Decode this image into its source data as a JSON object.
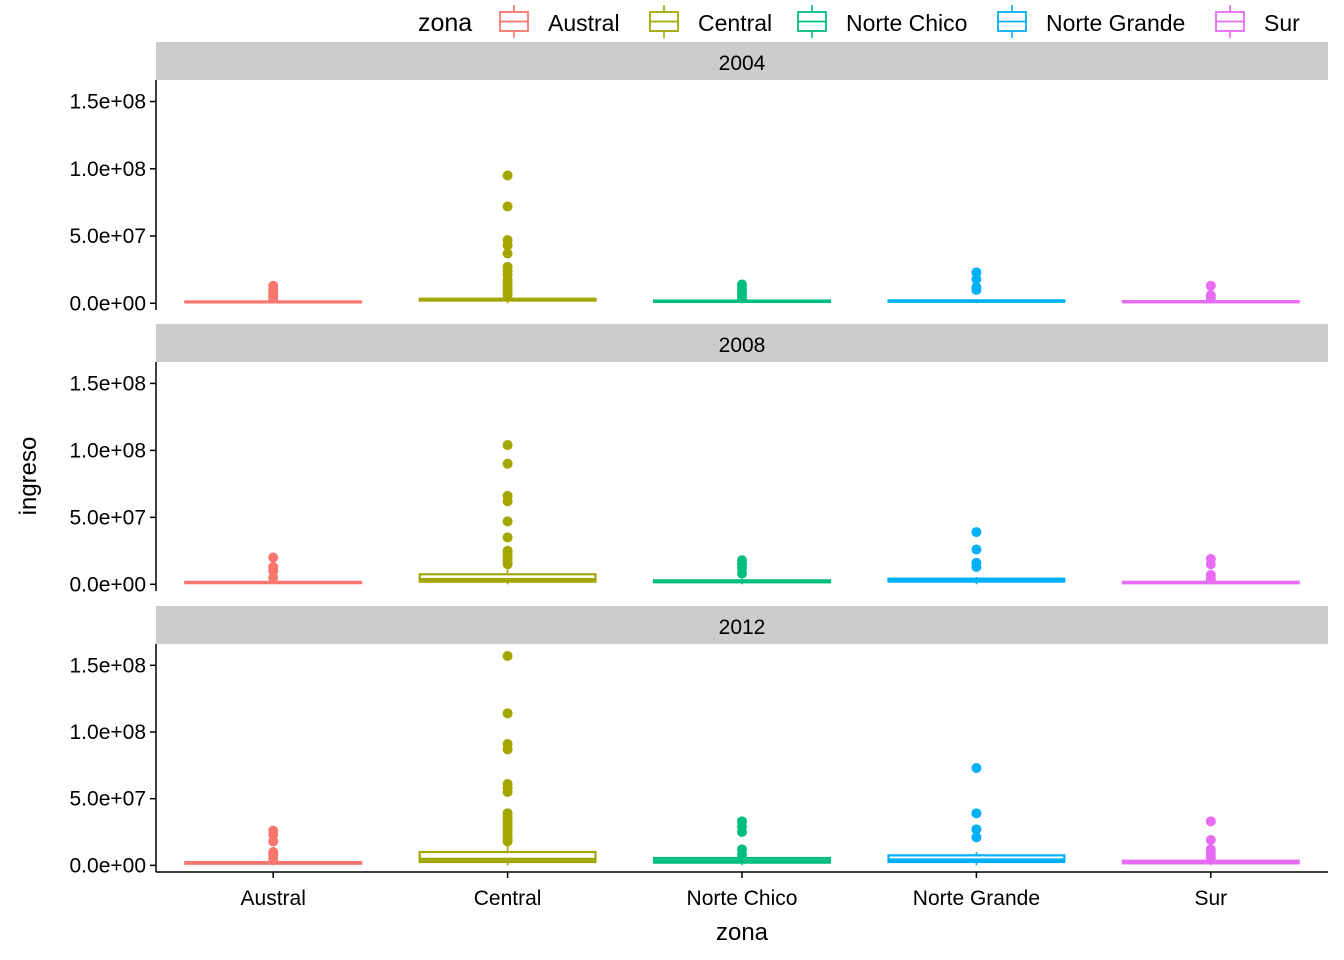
{
  "chart_data": {
    "type": "boxplot",
    "facet_by": "year",
    "facets": [
      "2004",
      "2008",
      "2012"
    ],
    "xlabel": "zona",
    "ylabel": "ingreso",
    "categories": [
      "Austral",
      "Central",
      "Norte Chico",
      "Norte Grande",
      "Sur"
    ],
    "ylim": [
      0,
      160000000
    ],
    "yticks": [
      0,
      50000000,
      100000000,
      150000000
    ],
    "ytick_labels": [
      "0.0e+00",
      "5.0e+07",
      "1.0e+08",
      "1.5e+08"
    ],
    "legend": {
      "title": "zona",
      "position": "top",
      "entries": [
        "Austral",
        "Central",
        "Norte Chico",
        "Norte Grande",
        "Sur"
      ]
    },
    "colors": {
      "Austral": "#F8766D",
      "Central": "#A3A500",
      "Norte Chico": "#00BF7D",
      "Norte Grande": "#00B0F6",
      "Sur": "#E76BF3"
    },
    "grid": false,
    "strip_color": "#CCCCCC",
    "panels": [
      {
        "facet": "2004",
        "boxes": [
          {
            "zona": "Austral",
            "lower": 0,
            "q1": 700000,
            "median": 1000000,
            "q3": 1300000,
            "upper": 2000000,
            "outliers": [
              13000000,
              11000000,
              9000000,
              7000000,
              5000000,
              3500000
            ]
          },
          {
            "zona": "Central",
            "lower": 0,
            "q1": 2000000,
            "median": 2700000,
            "q3": 3400000,
            "upper": 5000000,
            "outliers": [
              95000000,
              72000000,
              47000000,
              43000000,
              37000000,
              27000000,
              24000000,
              21000000,
              17000000,
              14000000,
              11000000,
              8000000,
              6000000
            ]
          },
          {
            "zona": "Norte Chico",
            "lower": 0,
            "q1": 1000000,
            "median": 1500000,
            "q3": 2000000,
            "upper": 3000000,
            "outliers": [
              14000000,
              11000000,
              8000000,
              6000000,
              4000000
            ]
          },
          {
            "zona": "Norte Grande",
            "lower": 0,
            "q1": 1100000,
            "median": 1700000,
            "q3": 2100000,
            "upper": 3000000,
            "outliers": [
              23000000,
              18000000,
              12000000,
              10000000
            ]
          },
          {
            "zona": "Sur",
            "lower": 0,
            "q1": 800000,
            "median": 1200000,
            "q3": 1600000,
            "upper": 2500000,
            "outliers": [
              13000000,
              6000000,
              4000000
            ]
          }
        ]
      },
      {
        "facet": "2008",
        "boxes": [
          {
            "zona": "Austral",
            "lower": 0,
            "q1": 900000,
            "median": 1300000,
            "q3": 1800000,
            "upper": 2800000,
            "outliers": [
              20000000,
              13000000,
              10000000,
              5000000
            ]
          },
          {
            "zona": "Central",
            "lower": 0,
            "q1": 2000000,
            "median": 3500000,
            "q3": 7500000,
            "upper": 11000000,
            "outliers": [
              104000000,
              90000000,
              66000000,
              62000000,
              47000000,
              35000000,
              25000000,
              23000000,
              20000000,
              17000000,
              15000000
            ]
          },
          {
            "zona": "Norte Chico",
            "lower": 0,
            "q1": 1500000,
            "median": 2200000,
            "q3": 3000000,
            "upper": 4200000,
            "outliers": [
              18000000,
              15000000,
              12000000,
              8000000
            ]
          },
          {
            "zona": "Norte Grande",
            "lower": 0,
            "q1": 2000000,
            "median": 3000000,
            "q3": 4200000,
            "upper": 5500000,
            "outliers": [
              39000000,
              26000000,
              16000000,
              13000000
            ]
          },
          {
            "zona": "Sur",
            "lower": 0,
            "q1": 800000,
            "median": 1300000,
            "q3": 1900000,
            "upper": 2800000,
            "outliers": [
              19000000,
              15000000,
              7000000,
              4000000
            ]
          }
        ]
      },
      {
        "facet": "2012",
        "boxes": [
          {
            "zona": "Austral",
            "lower": 0,
            "q1": 1200000,
            "median": 1800000,
            "q3": 2500000,
            "upper": 3500000,
            "outliers": [
              26000000,
              23000000,
              18000000,
              10000000,
              8000000,
              5000000
            ]
          },
          {
            "zona": "Central",
            "lower": 0,
            "q1": 2500000,
            "median": 4500000,
            "q3": 10000000,
            "upper": 15000000,
            "outliers": [
              157000000,
              114000000,
              91000000,
              87000000,
              61000000,
              58000000,
              55000000,
              39000000,
              36000000,
              33000000,
              30000000,
              27000000,
              25000000,
              22000000,
              20000000,
              18000000
            ]
          },
          {
            "zona": "Norte Chico",
            "lower": 0,
            "q1": 2000000,
            "median": 3500000,
            "q3": 5500000,
            "upper": 7000000,
            "outliers": [
              33000000,
              29000000,
              25000000,
              12000000,
              8000000
            ]
          },
          {
            "zona": "Norte Grande",
            "lower": 0,
            "q1": 2500000,
            "median": 4000000,
            "q3": 7500000,
            "upper": 10000000,
            "outliers": [
              73000000,
              39000000,
              27000000,
              21000000
            ]
          },
          {
            "zona": "Sur",
            "lower": 0,
            "q1": 1500000,
            "median": 2500000,
            "q3": 3500000,
            "upper": 5000000,
            "outliers": [
              33000000,
              19000000,
              12000000,
              9000000,
              6000000
            ]
          }
        ]
      }
    ]
  }
}
